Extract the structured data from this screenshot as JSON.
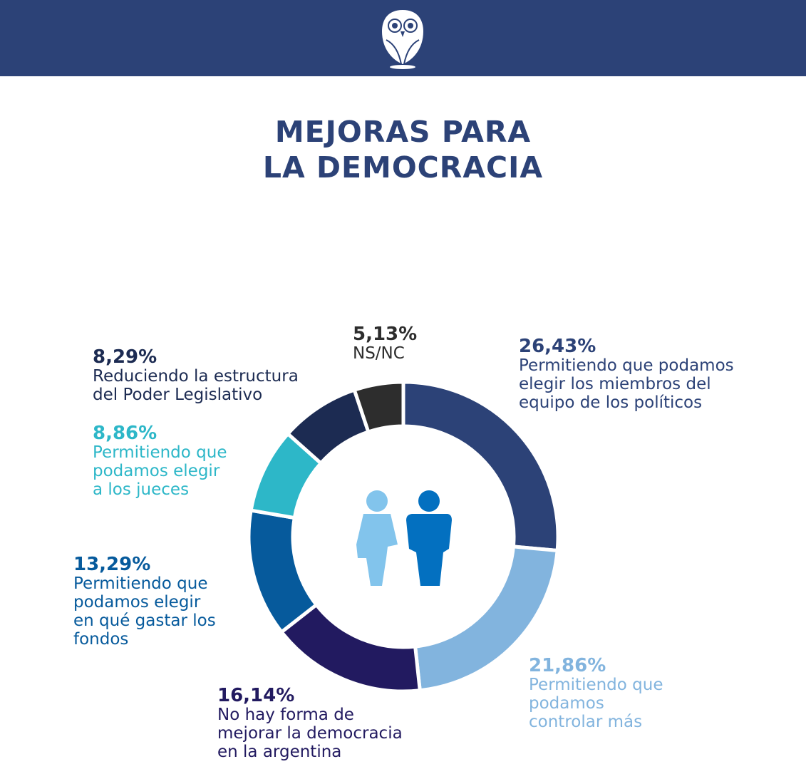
{
  "header": {
    "logo": "owl-logo"
  },
  "title": [
    "MEJORAS PARA",
    "LA DEMOCRACIA"
  ],
  "chart_data": {
    "type": "pie",
    "donut": true,
    "title": "MEJORAS PARA LA DEMOCRACIA",
    "center_icon": "people-icon",
    "slices": [
      {
        "value": 26.43,
        "pct_label": "26,43%",
        "label": [
          "Permitiendo que podamos",
          "elegir los miembros del",
          "equipo de los políticos"
        ],
        "color": "#2c4277",
        "label_color": "#2c4277"
      },
      {
        "value": 21.86,
        "pct_label": "21,86%",
        "label": [
          "Permitiendo que",
          "podamos",
          "controlar más"
        ],
        "color": "#82b4de",
        "label_color": "#82b4de"
      },
      {
        "value": 16.14,
        "pct_label": "16,14%",
        "label": [
          "No hay forma de",
          "mejorar la democracia",
          "en la argentina"
        ],
        "color": "#221a60",
        "label_color": "#221a60"
      },
      {
        "value": 13.29,
        "pct_label": "13,29%",
        "label": [
          "Permitiendo que",
          "podamos elegir",
          "en qué gastar los",
          "fondos"
        ],
        "color": "#065a9c",
        "label_color": "#065a9c"
      },
      {
        "value": 8.86,
        "pct_label": "8,86%",
        "label": [
          "Permitiendo que",
          "podamos elegir",
          "a los jueces"
        ],
        "color": "#2db7c8",
        "label_color": "#2db7c8"
      },
      {
        "value": 8.29,
        "pct_label": "8,29%",
        "label": [
          "Reduciendo la estructura",
          "del Poder Legislativo"
        ],
        "color": "#1c2b52",
        "label_color": "#1c2b52"
      },
      {
        "value": 5.13,
        "pct_label": "5,13%",
        "label": [
          "NS/NC"
        ],
        "color": "#2d2d2d",
        "label_color": "#2d2d2d"
      }
    ]
  }
}
